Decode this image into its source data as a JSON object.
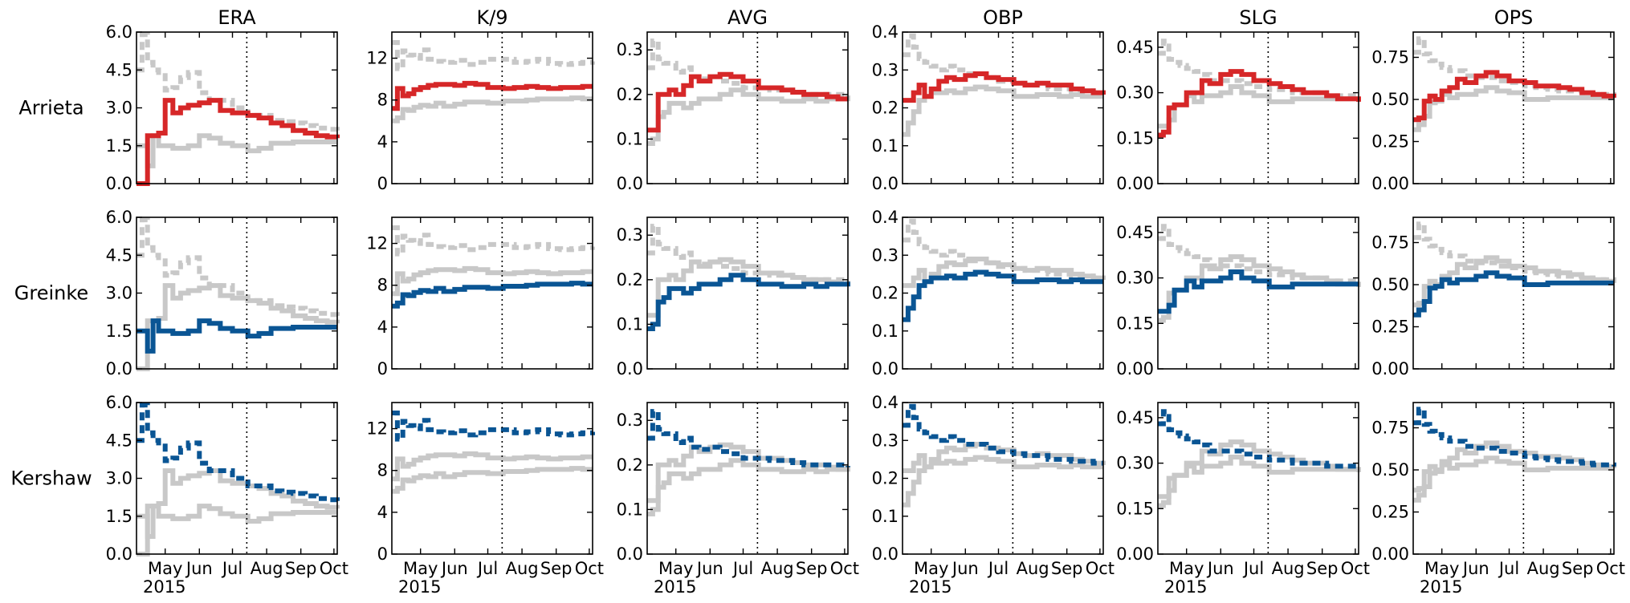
{
  "colors": {
    "arrieta": "#d62728",
    "greinke": "#0a5594",
    "kershaw": "#0a5594",
    "muted": "#c8c8c8",
    "axes": "#000000"
  },
  "chart_data": {
    "type": "line",
    "layout": "3 rows x 6 columns of small multiples",
    "columns": [
      "ERA",
      "K/9",
      "AVG",
      "OBP",
      "SLG",
      "OPS"
    ],
    "rows": [
      {
        "pitcher": "Arrieta",
        "style": "solid",
        "color": "#d62728"
      },
      {
        "pitcher": "Greinke",
        "style": "solid",
        "color": "#0a5594"
      },
      {
        "pitcher": "Kershaw",
        "style": "dashed",
        "color": "#0a5594"
      }
    ],
    "x_axis": {
      "tick_labels": [
        "May",
        "Jun",
        "Jul",
        "Aug",
        "Sep",
        "Oct"
      ],
      "year_label": "2015",
      "range": [
        "2015-04-05",
        "2015-10-04"
      ],
      "vertical_reference": {
        "date": "2015-07-14",
        "style": "dotted"
      }
    },
    "x": [
      "2015-04-05",
      "2015-04-10",
      "2015-04-15",
      "2015-04-20",
      "2015-04-25",
      "2015-05-01",
      "2015-05-08",
      "2015-05-15",
      "2015-05-22",
      "2015-06-01",
      "2015-06-10",
      "2015-06-20",
      "2015-07-01",
      "2015-07-15",
      "2015-07-25",
      "2015-08-05",
      "2015-08-15",
      "2015-08-25",
      "2015-09-05",
      "2015-09-15",
      "2015-09-25",
      "2015-10-04"
    ],
    "panels": {
      "ERA": {
        "yticks": [
          "0.0",
          "1.5",
          "3.0",
          "4.5",
          "6.0"
        ],
        "ylim": [
          0,
          6
        ],
        "series": {
          "Arrieta": [
            0,
            0,
            1.9,
            1.9,
            2.0,
            3.3,
            2.8,
            3.0,
            3.1,
            3.2,
            3.3,
            2.9,
            2.8,
            2.7,
            2.6,
            2.4,
            2.3,
            2.1,
            2.0,
            1.9,
            1.85,
            1.8
          ],
          "Greinke": [
            1.5,
            1.5,
            0.7,
            1.9,
            1.5,
            1.5,
            1.4,
            1.4,
            1.5,
            1.9,
            1.8,
            1.6,
            1.5,
            1.3,
            1.4,
            1.6,
            1.6,
            1.65,
            1.65,
            1.65,
            1.65,
            1.65
          ],
          "Kershaw": [
            4.5,
            5.9,
            4.8,
            4.5,
            4.4,
            3.7,
            3.8,
            4.2,
            4.4,
            3.6,
            3.3,
            3.3,
            3.0,
            2.7,
            2.7,
            2.5,
            2.45,
            2.4,
            2.3,
            2.2,
            2.15,
            2.1
          ]
        }
      },
      "K/9": {
        "yticks": [
          "0",
          "4",
          "8",
          "12"
        ],
        "ylim": [
          0,
          14.5
        ],
        "series": {
          "Arrieta": [
            7.2,
            9.1,
            8.4,
            8.6,
            9.0,
            9.2,
            9.4,
            9.5,
            9.5,
            9.4,
            9.6,
            9.5,
            9.2,
            9.1,
            9.2,
            9.3,
            9.2,
            9.1,
            9.2,
            9.2,
            9.3,
            9.3
          ],
          "Greinke": [
            6.0,
            6.3,
            7.1,
            7.0,
            7.3,
            7.5,
            7.4,
            7.7,
            7.4,
            7.6,
            7.8,
            7.8,
            7.7,
            7.9,
            7.9,
            8.0,
            8.1,
            8.1,
            8.1,
            8.2,
            8.1,
            8.1
          ],
          "Kershaw": [
            13.5,
            11.0,
            12.7,
            12.3,
            12.0,
            12.8,
            11.9,
            11.7,
            11.6,
            11.8,
            11.4,
            11.6,
            11.9,
            11.9,
            11.6,
            11.7,
            11.9,
            11.5,
            11.4,
            11.5,
            11.6,
            11.7
          ]
        }
      },
      "AVG": {
        "yticks": [
          "0.0",
          "0.1",
          "0.2",
          "0.3"
        ],
        "ylim": [
          0,
          0.34
        ],
        "series": {
          "Arrieta": [
            0.12,
            0.12,
            0.2,
            0.2,
            0.21,
            0.2,
            0.22,
            0.24,
            0.23,
            0.24,
            0.245,
            0.24,
            0.23,
            0.215,
            0.215,
            0.21,
            0.205,
            0.2,
            0.2,
            0.195,
            0.19,
            0.19
          ],
          "Greinke": [
            0.09,
            0.1,
            0.15,
            0.16,
            0.18,
            0.18,
            0.17,
            0.18,
            0.19,
            0.19,
            0.2,
            0.21,
            0.2,
            0.19,
            0.19,
            0.185,
            0.185,
            0.19,
            0.185,
            0.19,
            0.19,
            0.185
          ],
          "Kershaw": [
            0.26,
            0.32,
            0.28,
            0.27,
            0.27,
            0.25,
            0.26,
            0.24,
            0.235,
            0.24,
            0.23,
            0.225,
            0.215,
            0.215,
            0.21,
            0.21,
            0.205,
            0.2,
            0.2,
            0.2,
            0.2,
            0.195
          ]
        }
      },
      "OBP": {
        "yticks": [
          "0.0",
          "0.1",
          "0.2",
          "0.3",
          "0.4"
        ],
        "ylim": [
          0,
          0.4
        ],
        "series": {
          "Arrieta": [
            0.22,
            0.22,
            0.24,
            0.26,
            0.23,
            0.25,
            0.27,
            0.28,
            0.275,
            0.285,
            0.29,
            0.28,
            0.275,
            0.265,
            0.26,
            0.265,
            0.26,
            0.26,
            0.25,
            0.245,
            0.24,
            0.235
          ],
          "Greinke": [
            0.13,
            0.16,
            0.19,
            0.22,
            0.23,
            0.24,
            0.24,
            0.245,
            0.24,
            0.25,
            0.255,
            0.25,
            0.245,
            0.23,
            0.23,
            0.235,
            0.235,
            0.23,
            0.235,
            0.23,
            0.23,
            0.23
          ],
          "Kershaw": [
            0.34,
            0.39,
            0.36,
            0.33,
            0.32,
            0.31,
            0.3,
            0.31,
            0.3,
            0.29,
            0.29,
            0.28,
            0.27,
            0.265,
            0.26,
            0.26,
            0.25,
            0.25,
            0.245,
            0.245,
            0.24,
            0.24
          ]
        }
      },
      "SLG": {
        "yticks": [
          "0.00",
          "0.15",
          "0.30",
          "0.45"
        ],
        "ylim": [
          0,
          0.5
        ],
        "series": {
          "Arrieta": [
            0.16,
            0.17,
            0.25,
            0.26,
            0.26,
            0.3,
            0.3,
            0.34,
            0.33,
            0.36,
            0.37,
            0.36,
            0.34,
            0.33,
            0.32,
            0.31,
            0.3,
            0.3,
            0.29,
            0.28,
            0.28,
            0.27
          ],
          "Greinke": [
            0.19,
            0.19,
            0.21,
            0.26,
            0.26,
            0.29,
            0.27,
            0.29,
            0.29,
            0.3,
            0.32,
            0.3,
            0.29,
            0.27,
            0.27,
            0.28,
            0.28,
            0.28,
            0.28,
            0.28,
            0.28,
            0.28
          ],
          "Kershaw": [
            0.43,
            0.47,
            0.41,
            0.4,
            0.39,
            0.38,
            0.37,
            0.36,
            0.34,
            0.34,
            0.34,
            0.33,
            0.32,
            0.31,
            0.31,
            0.3,
            0.3,
            0.3,
            0.29,
            0.29,
            0.29,
            0.29
          ]
        }
      },
      "OPS": {
        "yticks": [
          "0.00",
          "0.25",
          "0.50",
          "0.75"
        ],
        "ylim": [
          0,
          0.9
        ],
        "series": {
          "Arrieta": [
            0.38,
            0.39,
            0.49,
            0.52,
            0.5,
            0.55,
            0.57,
            0.62,
            0.6,
            0.64,
            0.66,
            0.64,
            0.61,
            0.6,
            0.58,
            0.58,
            0.57,
            0.56,
            0.54,
            0.53,
            0.52,
            0.51
          ],
          "Greinke": [
            0.32,
            0.35,
            0.4,
            0.48,
            0.49,
            0.53,
            0.51,
            0.53,
            0.53,
            0.55,
            0.57,
            0.55,
            0.54,
            0.5,
            0.5,
            0.51,
            0.51,
            0.51,
            0.51,
            0.51,
            0.51,
            0.51
          ],
          "Kershaw": [
            0.78,
            0.86,
            0.77,
            0.73,
            0.71,
            0.69,
            0.67,
            0.67,
            0.64,
            0.63,
            0.63,
            0.61,
            0.6,
            0.58,
            0.57,
            0.56,
            0.55,
            0.55,
            0.54,
            0.53,
            0.53,
            0.52
          ]
        }
      }
    }
  }
}
